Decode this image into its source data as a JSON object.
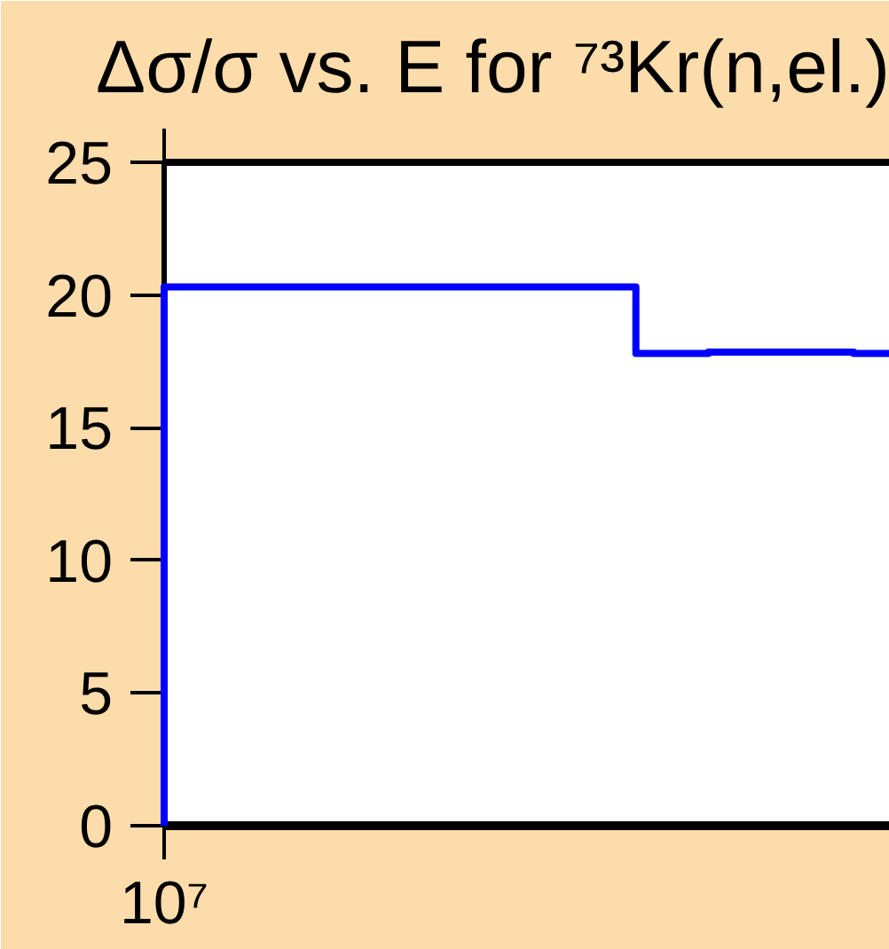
{
  "chart_data": {
    "type": "step",
    "title": "Δσ/σ vs. E for ⁷³Kr(n,el.)",
    "categories": [
      "10⁷",
      null,
      null,
      null,
      null,
      null,
      null,
      null,
      null,
      null,
      null,
      null,
      null,
      null,
      null,
      null,
      null,
      null,
      null,
      null,
      null
    ],
    "series": [
      {
        "color": "#0000ff",
        "values": [
          0,
          20.3,
          20.3,
          20.3,
          20.3,
          20.3,
          20.3,
          20.3,
          20.3,
          20.3,
          20.3,
          20.3,
          20.3,
          20.3,
          17.8,
          17.8,
          17.85,
          17.85,
          17.85,
          17.85,
          17.8
        ]
      }
    ],
    "ylim": [
      0,
      25
    ],
    "yticks": [
      0,
      5,
      10,
      15,
      20,
      25
    ]
  }
}
